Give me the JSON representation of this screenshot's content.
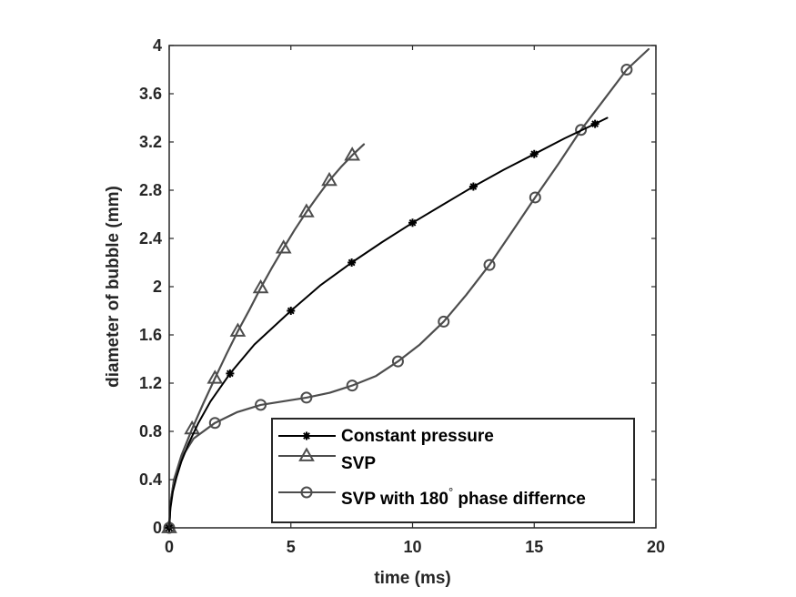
{
  "chart_data": {
    "type": "line",
    "title": "",
    "xlabel": "time (ms)",
    "ylabel": "diameter of bubble (mm)",
    "xlim": [
      0,
      20
    ],
    "ylim": [
      0,
      4
    ],
    "xticks": [
      0,
      5,
      10,
      15,
      20
    ],
    "yticks": [
      0,
      0.4,
      0.8,
      1.2,
      1.6,
      2,
      2.4,
      2.8,
      3.2,
      3.6,
      4
    ],
    "grid": false,
    "legend_position": "bottom-right",
    "series": [
      {
        "name": "Constant pressure",
        "marker": "star",
        "color": "#000000",
        "x": [
          0,
          0.05,
          0.15,
          0.3,
          0.5,
          0.8,
          1.2,
          1.7,
          2.5,
          3.5,
          5,
          6.2,
          7.5,
          8.75,
          10,
          11.25,
          12.5,
          13.75,
          15,
          16.25,
          17.5,
          18
        ],
        "y": [
          0,
          0.16,
          0.3,
          0.42,
          0.55,
          0.7,
          0.87,
          1.05,
          1.28,
          1.52,
          1.8,
          2.01,
          2.2,
          2.37,
          2.53,
          2.68,
          2.83,
          2.97,
          3.1,
          3.23,
          3.35,
          3.4
        ],
        "marker_x": [
          0,
          2.5,
          5,
          7.5,
          10,
          12.5,
          15,
          17.5
        ],
        "marker_y": [
          0,
          1.28,
          1.8,
          2.2,
          2.53,
          2.83,
          3.1,
          3.35
        ]
      },
      {
        "name": "SVP",
        "marker": "triangle",
        "color": "#4d4d4d",
        "x": [
          0,
          0.05,
          0.2,
          0.5,
          0.94,
          1.4,
          1.88,
          2.35,
          2.82,
          3.3,
          3.76,
          4.2,
          4.7,
          5.15,
          5.64,
          6.1,
          6.58,
          7.05,
          7.52,
          8.0
        ],
        "y": [
          0,
          0.2,
          0.4,
          0.6,
          0.82,
          1.03,
          1.24,
          1.44,
          1.63,
          1.81,
          1.99,
          2.15,
          2.32,
          2.47,
          2.62,
          2.75,
          2.88,
          2.99,
          3.09,
          3.18
        ],
        "marker_x": [
          0,
          0.94,
          1.88,
          2.82,
          3.76,
          4.7,
          5.64,
          6.58,
          7.52
        ],
        "marker_y": [
          0,
          0.82,
          1.24,
          1.63,
          1.99,
          2.32,
          2.62,
          2.88,
          3.09
        ]
      },
      {
        "name": "SVP with 180° phase differnce",
        "name_main": "SVP with 180",
        "name_sup": "°",
        "name_tail": " phase differnce",
        "marker": "circle",
        "color": "#4d4d4d",
        "x": [
          0,
          0.05,
          0.2,
          0.5,
          1.0,
          1.88,
          2.8,
          3.76,
          4.7,
          5.64,
          6.6,
          7.52,
          8.5,
          9.4,
          10.3,
          11.28,
          12.2,
          13.16,
          14.1,
          15.04,
          16.0,
          16.92,
          17.9,
          18.8,
          19.7
        ],
        "y": [
          0,
          0.2,
          0.4,
          0.58,
          0.74,
          0.87,
          0.96,
          1.02,
          1.05,
          1.08,
          1.12,
          1.18,
          1.26,
          1.38,
          1.52,
          1.71,
          1.93,
          2.18,
          2.46,
          2.74,
          3.02,
          3.3,
          3.56,
          3.8,
          3.97
        ],
        "marker_x": [
          0,
          1.88,
          3.76,
          5.64,
          7.52,
          9.4,
          11.28,
          13.16,
          15.04,
          16.92,
          18.8
        ],
        "marker_y": [
          0,
          0.87,
          1.02,
          1.08,
          1.18,
          1.38,
          1.71,
          2.18,
          2.74,
          3.3,
          3.8
        ]
      }
    ]
  }
}
